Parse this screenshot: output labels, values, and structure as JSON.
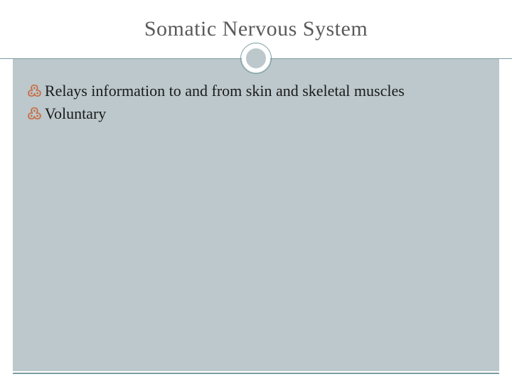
{
  "slide": {
    "title": "Somatic Nervous System",
    "title_color": "#5a5a5a",
    "title_fontsize": 30,
    "background_color": "#ffffff",
    "content_background": "#bcc8cb",
    "accent_line_color": "#7a9ba0",
    "bullet_marker_color": "#c86f4a",
    "bullet_text_color": "#1a1a1a",
    "bullet_fontsize": 22,
    "bullets": [
      {
        "text": "Relays information to and from skin and skeletal muscles"
      },
      {
        "text": "Voluntary"
      }
    ],
    "bullet_glyph": "་"
  }
}
